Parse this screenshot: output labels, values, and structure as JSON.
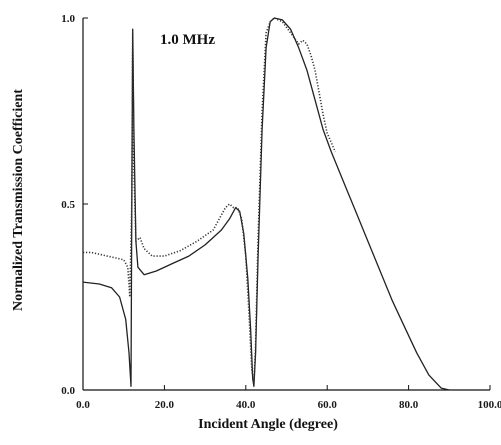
{
  "chart_data": {
    "type": "line",
    "title": "",
    "annotation": "1.0 MHz",
    "xlabel": "Incident Angle (degree)",
    "ylabel": "Normalized Transmission Coefficient",
    "xlim": [
      0,
      100
    ],
    "ylim": [
      0,
      1.0
    ],
    "x_ticks": [
      "0.0",
      "20.0",
      "40.0",
      "60.0",
      "80.0",
      "100.0"
    ],
    "y_ticks": [
      "0.0",
      "0.5",
      "1.0"
    ],
    "grid": false,
    "legend": "none",
    "series": [
      {
        "style": "solid",
        "color": "#222222",
        "points": [
          [
            0,
            0.29
          ],
          [
            4,
            0.285
          ],
          [
            7,
            0.275
          ],
          [
            9,
            0.25
          ],
          [
            10.5,
            0.19
          ],
          [
            11.3,
            0.1
          ],
          [
            11.8,
            0.01
          ],
          [
            12.0,
            0.5
          ],
          [
            12.2,
            0.97
          ],
          [
            12.5,
            0.7
          ],
          [
            13,
            0.4
          ],
          [
            13.5,
            0.33
          ],
          [
            15,
            0.31
          ],
          [
            18,
            0.32
          ],
          [
            22,
            0.34
          ],
          [
            26,
            0.36
          ],
          [
            30,
            0.39
          ],
          [
            34,
            0.43
          ],
          [
            36,
            0.46
          ],
          [
            37.5,
            0.49
          ],
          [
            38.5,
            0.48
          ],
          [
            39.5,
            0.42
          ],
          [
            40.5,
            0.3
          ],
          [
            41.2,
            0.16
          ],
          [
            41.7,
            0.03
          ],
          [
            42.0,
            0.01
          ],
          [
            42.4,
            0.1
          ],
          [
            43,
            0.35
          ],
          [
            44,
            0.7
          ],
          [
            45,
            0.92
          ],
          [
            46,
            0.99
          ],
          [
            47,
            1.0
          ],
          [
            49,
            0.995
          ],
          [
            51,
            0.97
          ],
          [
            53,
            0.92
          ],
          [
            55,
            0.86
          ],
          [
            57,
            0.78
          ],
          [
            59,
            0.7
          ],
          [
            61,
            0.64
          ],
          [
            64,
            0.56
          ],
          [
            67,
            0.48
          ],
          [
            70,
            0.4
          ],
          [
            73,
            0.32
          ],
          [
            76,
            0.24
          ],
          [
            79,
            0.17
          ],
          [
            82,
            0.1
          ],
          [
            85,
            0.04
          ],
          [
            88,
            0.005
          ],
          [
            90,
            0.0
          ]
        ]
      },
      {
        "style": "dotted",
        "color": "#333333",
        "points": [
          [
            0,
            0.37
          ],
          [
            2,
            0.37
          ],
          [
            4,
            0.365
          ],
          [
            6,
            0.36
          ],
          [
            8,
            0.355
          ],
          [
            10,
            0.35
          ],
          [
            11,
            0.33
          ],
          [
            11.5,
            0.25
          ],
          [
            12.0,
            0.5
          ],
          [
            12.2,
            0.96
          ],
          [
            12.5,
            0.6
          ],
          [
            13,
            0.4
          ],
          [
            14,
            0.41
          ],
          [
            15,
            0.38
          ],
          [
            17,
            0.36
          ],
          [
            20,
            0.36
          ],
          [
            24,
            0.375
          ],
          [
            28,
            0.4
          ],
          [
            32,
            0.43
          ],
          [
            35,
            0.49
          ],
          [
            36,
            0.5
          ],
          [
            37,
            0.49
          ],
          [
            38,
            0.49
          ],
          [
            39,
            0.46
          ],
          [
            40,
            0.36
          ],
          [
            40.8,
            0.2
          ],
          [
            41.5,
            0.05
          ],
          [
            42,
            0.02
          ],
          [
            42.4,
            0.12
          ],
          [
            43,
            0.4
          ],
          [
            44,
            0.75
          ],
          [
            45,
            0.96
          ],
          [
            46,
            0.99
          ],
          [
            47,
            1.0
          ],
          [
            49,
            0.99
          ],
          [
            51,
            0.96
          ],
          [
            53,
            0.93
          ],
          [
            54,
            0.94
          ],
          [
            55,
            0.93
          ],
          [
            56,
            0.9
          ],
          [
            57,
            0.86
          ],
          [
            58,
            0.8
          ],
          [
            59,
            0.74
          ],
          [
            60,
            0.69
          ],
          [
            62,
            0.64
          ]
        ]
      }
    ]
  }
}
